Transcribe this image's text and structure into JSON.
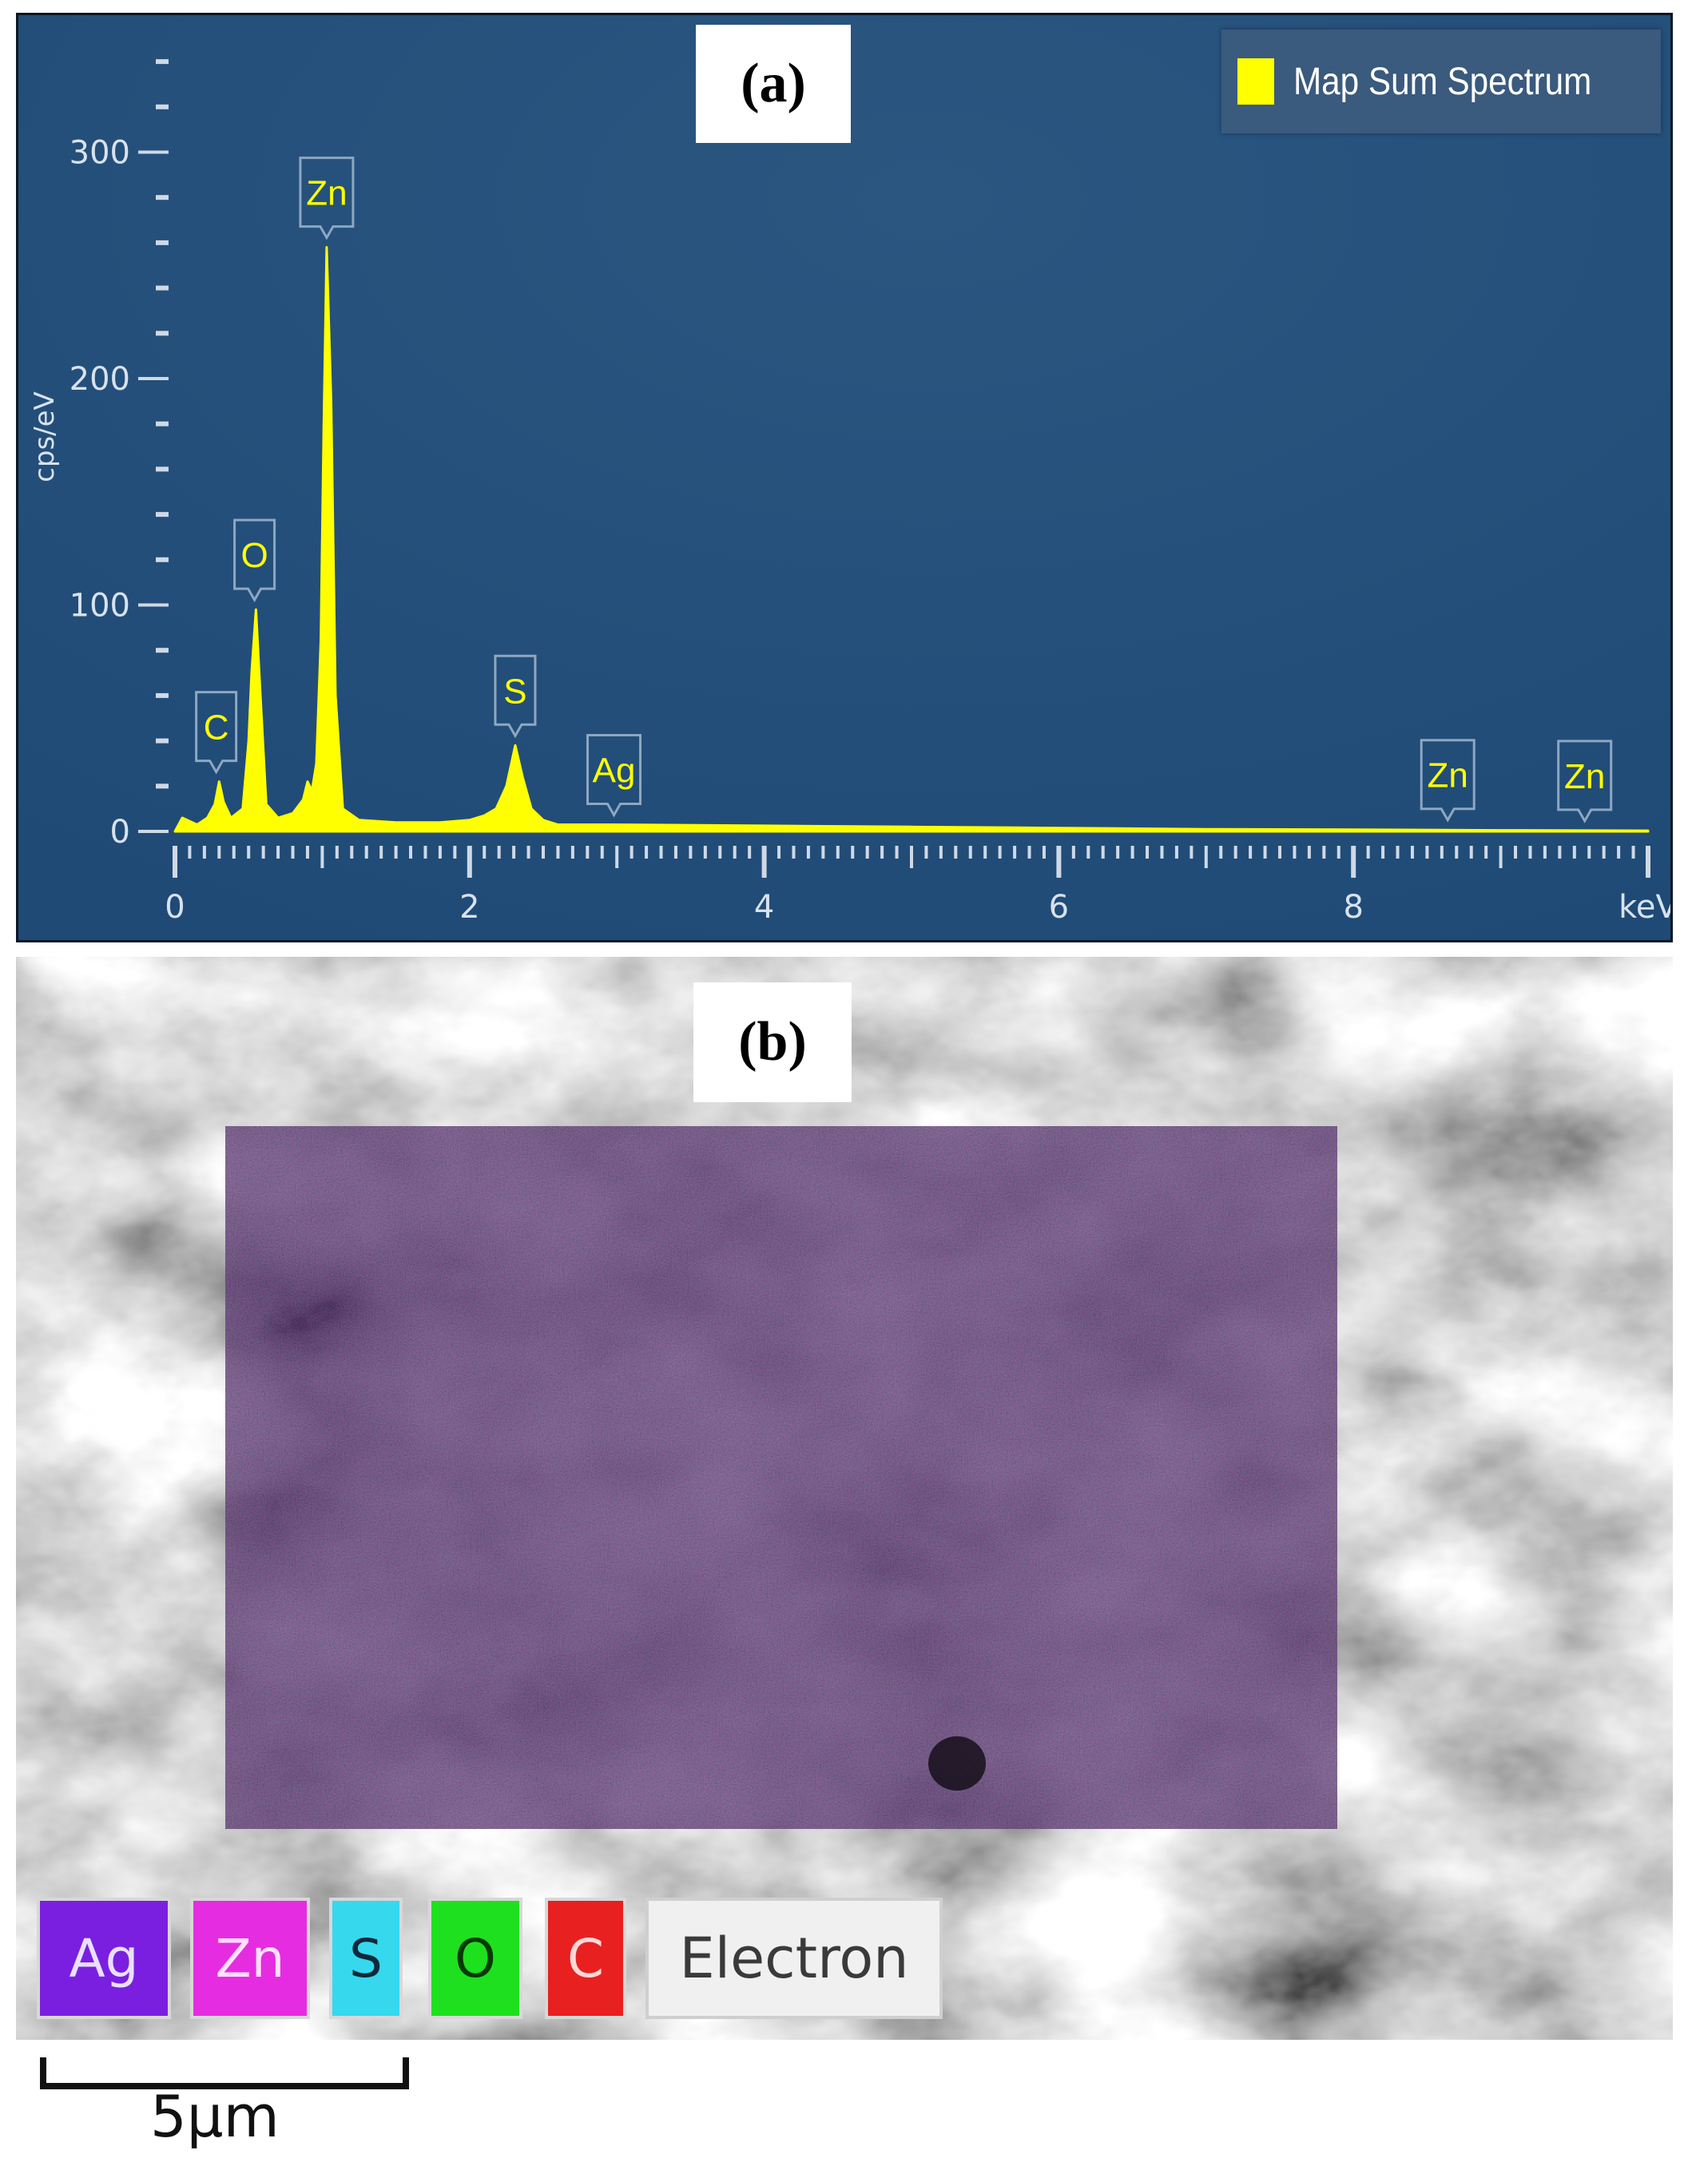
{
  "panel_a": {
    "tag": "(a)",
    "legend_label": "Map Sum Spectrum",
    "colors": {
      "background": "#264e77",
      "spectrum": "#ffff00",
      "axis": "#ffffff"
    }
  },
  "panel_b": {
    "tag": "(b)",
    "element_key": {
      "ag": "Ag",
      "zn": "Zn",
      "s": "S",
      "o": "O",
      "c": "C",
      "electron": "Electron"
    },
    "colors": {
      "Ag": "#7a1fe0",
      "Zn": "#e62ce0",
      "S": "#36d8ee",
      "O": "#1ee01e",
      "C": "#e82020"
    }
  },
  "scale_bar": {
    "label": "5μm"
  },
  "chart_data": {
    "type": "line",
    "title": "",
    "xlabel": "keV",
    "ylabel": "cps/eV",
    "xlim": [
      0,
      10
    ],
    "ylim": [
      0,
      340
    ],
    "x_ticks": [
      0,
      2,
      4,
      6,
      8
    ],
    "y_ticks": [
      0,
      100,
      200,
      300
    ],
    "grid": false,
    "legend": "top-right",
    "series": [
      {
        "name": "Map Sum Spectrum",
        "x": [
          0,
          0.05,
          0.15,
          0.22,
          0.27,
          0.3,
          0.33,
          0.38,
          0.46,
          0.5,
          0.52,
          0.55,
          0.58,
          0.62,
          0.7,
          0.8,
          0.87,
          0.9,
          0.93,
          0.96,
          0.99,
          1.01,
          1.03,
          1.06,
          1.09,
          1.14,
          1.25,
          1.5,
          1.8,
          2.0,
          2.1,
          2.18,
          2.25,
          2.31,
          2.36,
          2.42,
          2.5,
          2.6,
          3.0,
          4.0,
          5.0,
          6.0,
          7.0,
          8.0,
          9.0,
          10.0
        ],
        "y": [
          0,
          6,
          3,
          6,
          12,
          22,
          13,
          6,
          10,
          40,
          70,
          98,
          60,
          12,
          6,
          8,
          14,
          22,
          18,
          30,
          85,
          178,
          258,
          190,
          60,
          10,
          5,
          4,
          4,
          5,
          7,
          10,
          20,
          38,
          24,
          10,
          5,
          3,
          3,
          2.5,
          2,
          1.5,
          1,
          0.8,
          0.5,
          0.3
        ]
      }
    ],
    "annotations": [
      {
        "label": "C",
        "x": 0.28,
        "y": 22
      },
      {
        "label": "O",
        "x": 0.54,
        "y": 98
      },
      {
        "label": "Zn",
        "x": 1.03,
        "y": 258
      },
      {
        "label": "S",
        "x": 2.31,
        "y": 38
      },
      {
        "label": "Ag",
        "x": 2.98,
        "y": 3
      },
      {
        "label": "Zn",
        "x": 8.64,
        "y": 0.8
      },
      {
        "label": "Zn",
        "x": 9.57,
        "y": 0.4
      }
    ]
  }
}
